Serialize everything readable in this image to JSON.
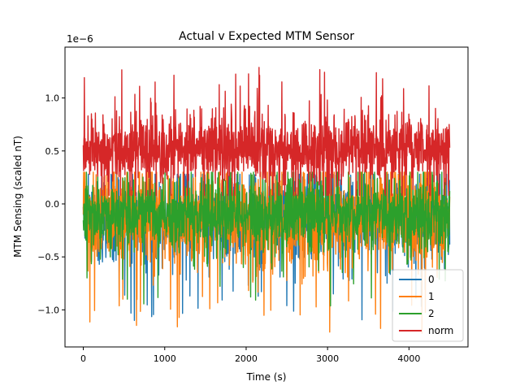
{
  "chart_data": {
    "type": "line",
    "title": "Actual v Expected MTM Sensor",
    "xlabel": "Time (s)",
    "ylabel": "MTM Sensing (scaled nT)",
    "y_scale_note": "1e−6",
    "xlim": [
      -225,
      4725
    ],
    "ylim": [
      -1.35,
      1.48
    ],
    "x_ticks": [
      0,
      1000,
      2000,
      3000,
      4000
    ],
    "x_tick_labels": [
      "0",
      "1000",
      "2000",
      "3000",
      "4000"
    ],
    "y_ticks": [
      -1.0,
      -0.5,
      0.0,
      0.5,
      1.0
    ],
    "y_tick_labels": [
      "−1.0",
      "−0.5",
      "0.0",
      "0.5",
      "1.0"
    ],
    "x_range": [
      0,
      4500
    ],
    "grid": false,
    "legend_position": "lower-right",
    "series": [
      {
        "name": "0",
        "color": "#1f77b4",
        "mean": -0.13,
        "spread": 0.2,
        "min": -1.1,
        "max": 0.28
      },
      {
        "name": "1",
        "color": "#ff7f0e",
        "mean": -0.13,
        "spread": 0.22,
        "min": -1.22,
        "max": 0.3
      },
      {
        "name": "2",
        "color": "#2ca02c",
        "mean": -0.12,
        "spread": 0.17,
        "min": -1.0,
        "max": 0.3
      },
      {
        "name": "norm",
        "color": "#d62728",
        "mean": 0.52,
        "spread": 0.16,
        "min": 0.08,
        "max": 1.37
      }
    ]
  }
}
